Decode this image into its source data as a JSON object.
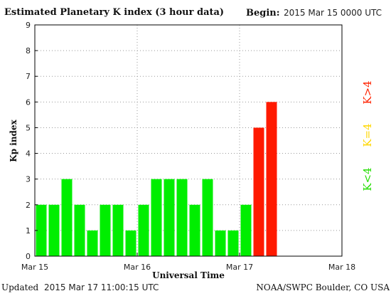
{
  "header": {
    "title": "Estimated Planetary K index (3 hour data)",
    "begin_label": "Begin:",
    "begin_value": "2015 Mar 15 0000 UTC"
  },
  "footer": {
    "updated_label": "Updated",
    "updated_value": "2015 Mar 17 11:00:15 UTC",
    "credit": "NOAA/SWPC Boulder, CO USA"
  },
  "legend": {
    "high": {
      "label": "K>4",
      "color": "#ff2200"
    },
    "mid": {
      "label": "K=4",
      "color": "#ffd700"
    },
    "low": {
      "label": "K<4",
      "color": "#22dd00"
    }
  },
  "colors": {
    "low_bar": "#00ee00",
    "high_bar": "#ff1a00",
    "grid": "#999999",
    "axis": "#000000"
  },
  "chart_data": {
    "type": "bar",
    "title": "Estimated Planetary K index (3 hour data)",
    "xlabel": "Universal Time",
    "ylabel": "Kp index",
    "ylim": [
      0,
      9
    ],
    "yticks": [
      0,
      1,
      2,
      3,
      4,
      5,
      6,
      7,
      8,
      9
    ],
    "xticks": [
      "Mar 15",
      "Mar 16",
      "Mar 17",
      "Mar 18"
    ],
    "bin_hours": 3,
    "start": "2015 Mar 15 0000 UTC",
    "end": "2015 Mar 18 0000 UTC",
    "grid": true,
    "values": [
      2,
      2,
      3,
      2,
      1,
      2,
      2,
      1,
      2,
      3,
      3,
      3,
      2,
      3,
      1,
      1,
      2,
      5,
      6
    ]
  }
}
